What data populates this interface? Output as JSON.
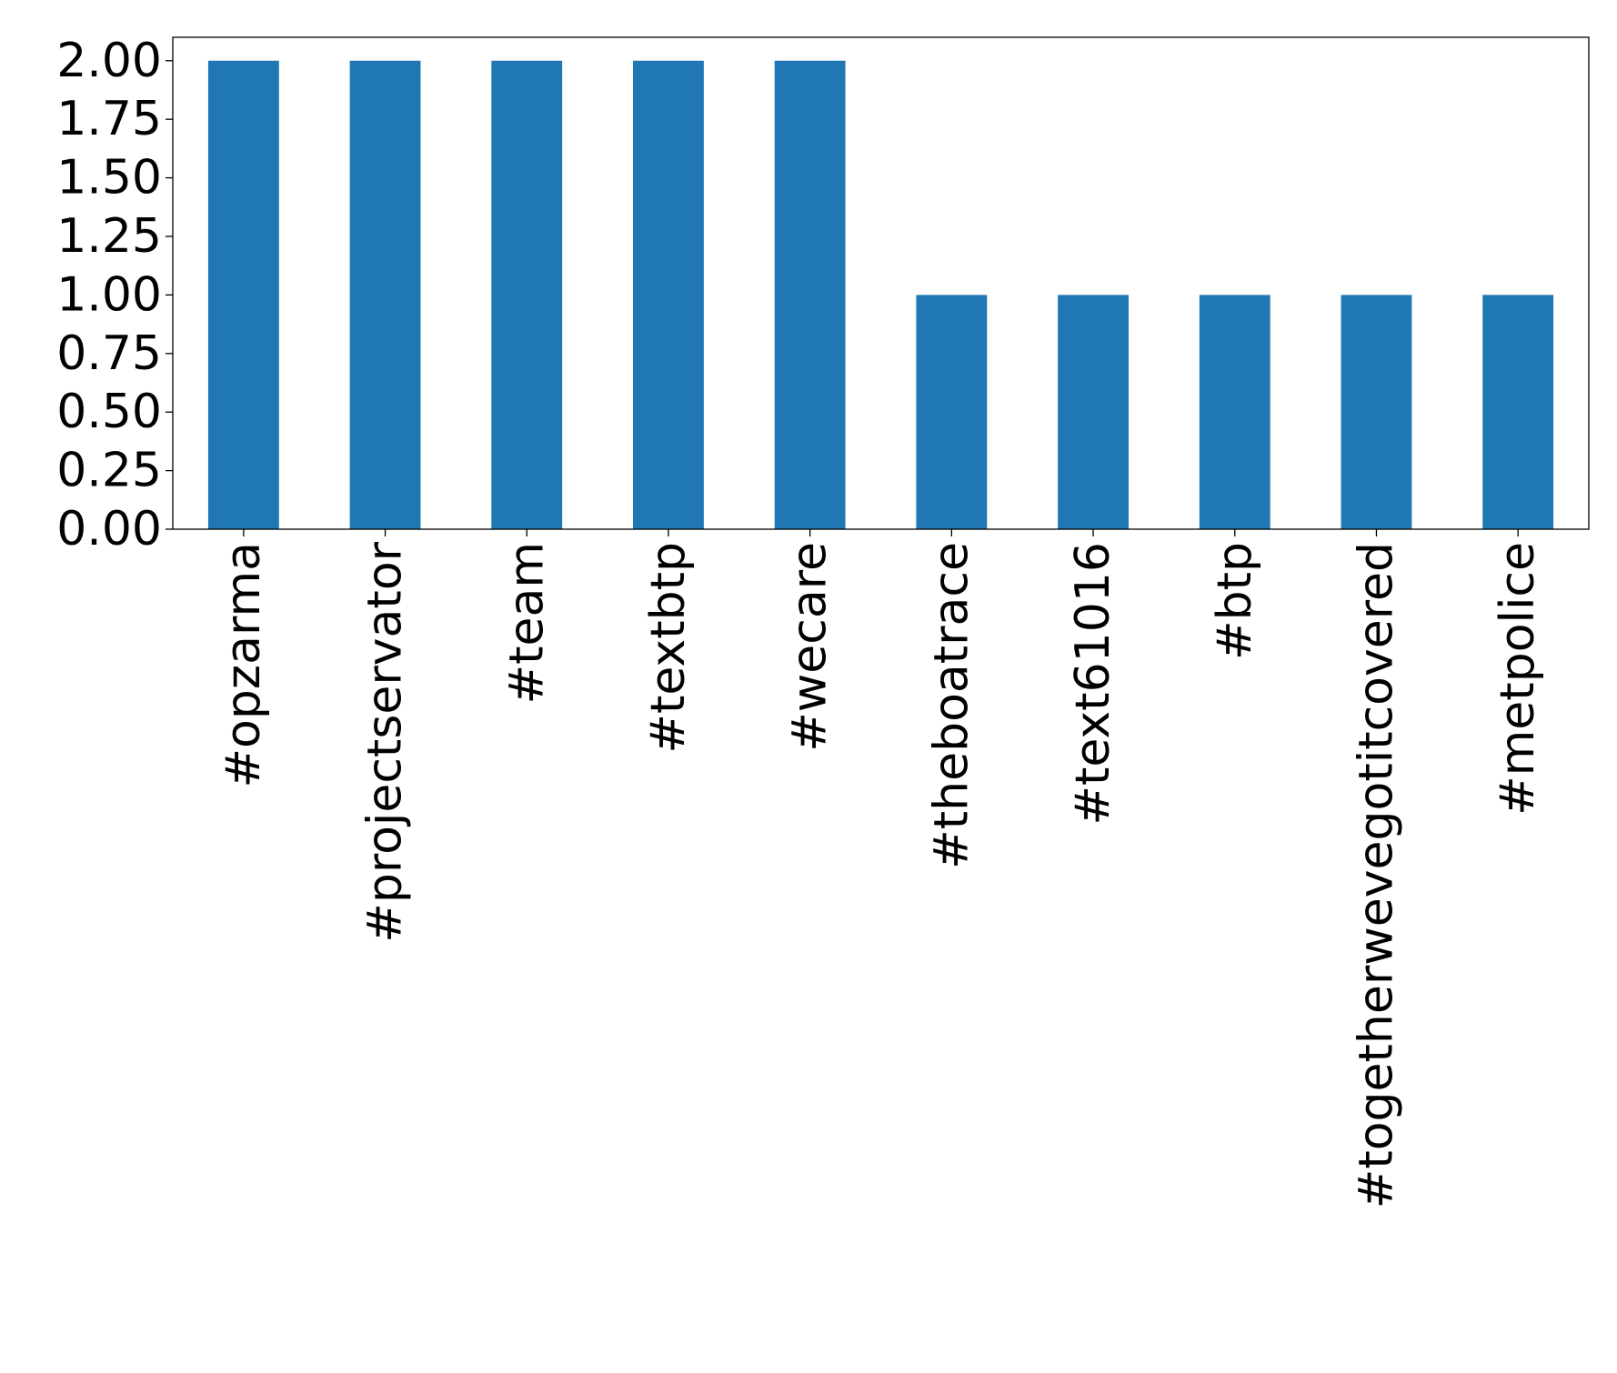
{
  "chart_data": {
    "type": "bar",
    "title": "",
    "xlabel": "",
    "ylabel": "",
    "categories": [
      "#opzarma",
      "#projectservator",
      "#team",
      "#textbtp",
      "#wecare",
      "#theboatrace",
      "#text61016",
      "#btp",
      "#togetherwevegotitcovered",
      "#metpolice"
    ],
    "values": [
      2,
      2,
      2,
      2,
      2,
      1,
      1,
      1,
      1,
      1
    ],
    "ylim": [
      0,
      2.1
    ],
    "yticks": [
      0,
      0.25,
      0.5,
      0.75,
      1.0,
      1.25,
      1.5,
      1.75,
      2.0
    ],
    "ytick_labels": [
      "0.00",
      "0.25",
      "0.50",
      "0.75",
      "1.00",
      "1.25",
      "1.50",
      "1.75",
      "2.00"
    ],
    "bar_color": "#1f77b4",
    "grid": false,
    "legend": "none"
  }
}
